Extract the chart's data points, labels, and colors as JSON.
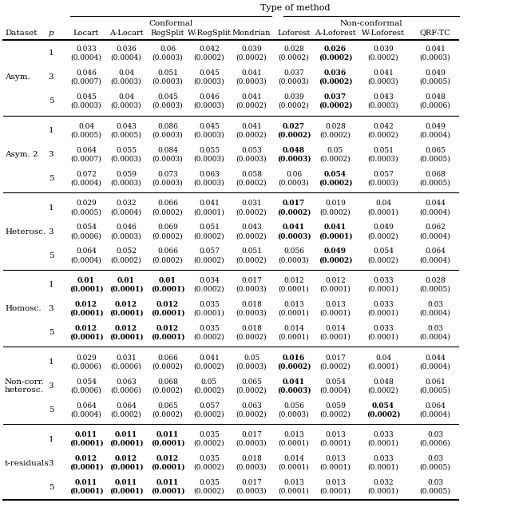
{
  "title": "Type of method",
  "conformal_label": "Conformal",
  "nonconformal_label": "Non-conformal",
  "col_headers": [
    "Locart",
    "A-Locart",
    "RegSplit",
    "W-RegSplit",
    "Mondrian",
    "Loforest",
    "A-Loforest",
    "W-Loforest",
    "QRF-TC"
  ],
  "row_groups": [
    {
      "name": "Asym.",
      "rows": [
        {
          "p": 1,
          "vals": [
            "0.033\n(0.0004)",
            "0.036\n(0.0004)",
            "0.06\n(0.0003)",
            "0.042\n(0.0002)",
            "0.039\n(0.0002)",
            "0.028\n(0.0002)",
            "0.026\n(0.0002)",
            "0.039\n(0.0002)",
            "0.041\n(0.0003)"
          ],
          "bold": [
            false,
            false,
            false,
            false,
            false,
            false,
            true,
            false,
            false
          ]
        },
        {
          "p": 3,
          "vals": [
            "0.046\n(0.0007)",
            "0.04\n(0.0003)",
            "0.051\n(0.0003)",
            "0.045\n(0.0003)",
            "0.041\n(0.0003)",
            "0.037\n(0.0003)",
            "0.036\n(0.0002)",
            "0.041\n(0.0003)",
            "0.049\n(0.0005)"
          ],
          "bold": [
            false,
            false,
            false,
            false,
            false,
            false,
            true,
            false,
            false
          ]
        },
        {
          "p": 5,
          "vals": [
            "0.045\n(0.0003)",
            "0.04\n(0.0003)",
            "0.045\n(0.0003)",
            "0.046\n(0.0003)",
            "0.041\n(0.0002)",
            "0.039\n(0.0002)",
            "0.037\n(0.0002)",
            "0.043\n(0.0003)",
            "0.048\n(0.0006)"
          ],
          "bold": [
            false,
            false,
            false,
            false,
            false,
            false,
            true,
            false,
            false
          ]
        }
      ]
    },
    {
      "name": "Asym. 2",
      "rows": [
        {
          "p": 1,
          "vals": [
            "0.04\n(0.0005)",
            "0.043\n(0.0005)",
            "0.086\n(0.0003)",
            "0.045\n(0.0003)",
            "0.041\n(0.0002)",
            "0.027\n(0.0002)",
            "0.028\n(0.0002)",
            "0.042\n(0.0002)",
            "0.049\n(0.0004)"
          ],
          "bold": [
            false,
            false,
            false,
            false,
            false,
            true,
            false,
            false,
            false
          ]
        },
        {
          "p": 3,
          "vals": [
            "0.064\n(0.0007)",
            "0.055\n(0.0003)",
            "0.084\n(0.0003)",
            "0.055\n(0.0003)",
            "0.053\n(0.0003)",
            "0.048\n(0.0003)",
            "0.05\n(0.0002)",
            "0.051\n(0.0003)",
            "0.065\n(0.0005)"
          ],
          "bold": [
            false,
            false,
            false,
            false,
            false,
            true,
            false,
            false,
            false
          ]
        },
        {
          "p": 5,
          "vals": [
            "0.072\n(0.0004)",
            "0.059\n(0.0003)",
            "0.073\n(0.0003)",
            "0.063\n(0.0003)",
            "0.058\n(0.0002)",
            "0.06\n(0.0003)",
            "0.054\n(0.0002)",
            "0.057\n(0.0003)",
            "0.068\n(0.0005)"
          ],
          "bold": [
            false,
            false,
            false,
            false,
            false,
            false,
            true,
            false,
            false
          ]
        }
      ]
    },
    {
      "name": "Heterosc.",
      "rows": [
        {
          "p": 1,
          "vals": [
            "0.029\n(0.0005)",
            "0.032\n(0.0004)",
            "0.066\n(0.0002)",
            "0.041\n(0.0001)",
            "0.031\n(0.0002)",
            "0.017\n(0.0002)",
            "0.019\n(0.0002)",
            "0.04\n(0.0001)",
            "0.044\n(0.0004)"
          ],
          "bold": [
            false,
            false,
            false,
            false,
            false,
            true,
            false,
            false,
            false
          ]
        },
        {
          "p": 3,
          "vals": [
            "0.054\n(0.0006)",
            "0.046\n(0.0003)",
            "0.069\n(0.0002)",
            "0.051\n(0.0002)",
            "0.043\n(0.0002)",
            "0.041\n(0.0003)",
            "0.041\n(0.0001)",
            "0.049\n(0.0002)",
            "0.062\n(0.0004)"
          ],
          "bold": [
            false,
            false,
            false,
            false,
            false,
            true,
            true,
            false,
            false
          ]
        },
        {
          "p": 5,
          "vals": [
            "0.064\n(0.0004)",
            "0.052\n(0.0002)",
            "0.066\n(0.0002)",
            "0.057\n(0.0002)",
            "0.051\n(0.0002)",
            "0.056\n(0.0003)",
            "0.049\n(0.0002)",
            "0.054\n(0.0002)",
            "0.064\n(0.0004)"
          ],
          "bold": [
            false,
            false,
            false,
            false,
            false,
            false,
            true,
            false,
            false
          ]
        }
      ]
    },
    {
      "name": "Homosc.",
      "rows": [
        {
          "p": 1,
          "vals": [
            "0.01\n(0.0001)",
            "0.01\n(0.0001)",
            "0.01\n(0.0001)",
            "0.034\n(0.0002)",
            "0.017\n(0.0003)",
            "0.012\n(0.0001)",
            "0.012\n(0.0001)",
            "0.033\n(0.0001)",
            "0.028\n(0.0005)"
          ],
          "bold": [
            true,
            true,
            true,
            false,
            false,
            false,
            false,
            false,
            false
          ]
        },
        {
          "p": 3,
          "vals": [
            "0.012\n(0.0001)",
            "0.012\n(0.0001)",
            "0.012\n(0.0001)",
            "0.035\n(0.0001)",
            "0.018\n(0.0003)",
            "0.013\n(0.0001)",
            "0.013\n(0.0001)",
            "0.033\n(0.0001)",
            "0.03\n(0.0004)"
          ],
          "bold": [
            true,
            true,
            true,
            false,
            false,
            false,
            false,
            false,
            false
          ]
        },
        {
          "p": 5,
          "vals": [
            "0.012\n(0.0001)",
            "0.012\n(0.0001)",
            "0.012\n(0.0001)",
            "0.035\n(0.0002)",
            "0.018\n(0.0002)",
            "0.014\n(0.0001)",
            "0.014\n(0.0001)",
            "0.033\n(0.0001)",
            "0.03\n(0.0004)"
          ],
          "bold": [
            true,
            true,
            true,
            false,
            false,
            false,
            false,
            false,
            false
          ]
        }
      ]
    },
    {
      "name": "Non-corr.\nheterosc.",
      "rows": [
        {
          "p": 1,
          "vals": [
            "0.029\n(0.0006)",
            "0.031\n(0.0006)",
            "0.066\n(0.0002)",
            "0.041\n(0.0002)",
            "0.05\n(0.0003)",
            "0.016\n(0.0002)",
            "0.017\n(0.0002)",
            "0.04\n(0.0001)",
            "0.044\n(0.0004)"
          ],
          "bold": [
            false,
            false,
            false,
            false,
            false,
            true,
            false,
            false,
            false
          ]
        },
        {
          "p": 3,
          "vals": [
            "0.054\n(0.0006)",
            "0.063\n(0.0006)",
            "0.068\n(0.0002)",
            "0.05\n(0.0002)",
            "0.065\n(0.0002)",
            "0.041\n(0.0003)",
            "0.054\n(0.0004)",
            "0.048\n(0.0002)",
            "0.061\n(0.0005)"
          ],
          "bold": [
            false,
            false,
            false,
            false,
            false,
            true,
            false,
            false,
            false
          ]
        },
        {
          "p": 5,
          "vals": [
            "0.064\n(0.0004)",
            "0.064\n(0.0002)",
            "0.065\n(0.0002)",
            "0.057\n(0.0002)",
            "0.063\n(0.0002)",
            "0.056\n(0.0003)",
            "0.059\n(0.0002)",
            "0.054\n(0.0002)",
            "0.064\n(0.0004)"
          ],
          "bold": [
            false,
            false,
            false,
            false,
            false,
            false,
            false,
            true,
            false
          ]
        }
      ]
    },
    {
      "name": "t-residuals",
      "rows": [
        {
          "p": 1,
          "vals": [
            "0.011\n(0.0001)",
            "0.011\n(0.0001)",
            "0.011\n(0.0001)",
            "0.035\n(0.0002)",
            "0.017\n(0.0003)",
            "0.013\n(0.0001)",
            "0.013\n(0.0001)",
            "0.033\n(0.0001)",
            "0.03\n(0.0006)"
          ],
          "bold": [
            true,
            true,
            true,
            false,
            false,
            false,
            false,
            false,
            false
          ]
        },
        {
          "p": 3,
          "vals": [
            "0.012\n(0.0001)",
            "0.012\n(0.0001)",
            "0.012\n(0.0001)",
            "0.035\n(0.0002)",
            "0.018\n(0.0003)",
            "0.014\n(0.0001)",
            "0.013\n(0.0001)",
            "0.033\n(0.0001)",
            "0.03\n(0.0005)"
          ],
          "bold": [
            true,
            true,
            true,
            false,
            false,
            false,
            false,
            false,
            false
          ]
        },
        {
          "p": 5,
          "vals": [
            "0.011\n(0.0001)",
            "0.011\n(0.0001)",
            "0.011\n(0.0001)",
            "0.035\n(0.0002)",
            "0.017\n(0.0003)",
            "0.013\n(0.0001)",
            "0.013\n(0.0001)",
            "0.032\n(0.0001)",
            "0.03\n(0.0005)"
          ],
          "bold": [
            true,
            true,
            true,
            false,
            false,
            false,
            false,
            false,
            false
          ]
        }
      ]
    }
  ],
  "figsize": [
    6.4,
    6.35
  ],
  "dpi": 100
}
